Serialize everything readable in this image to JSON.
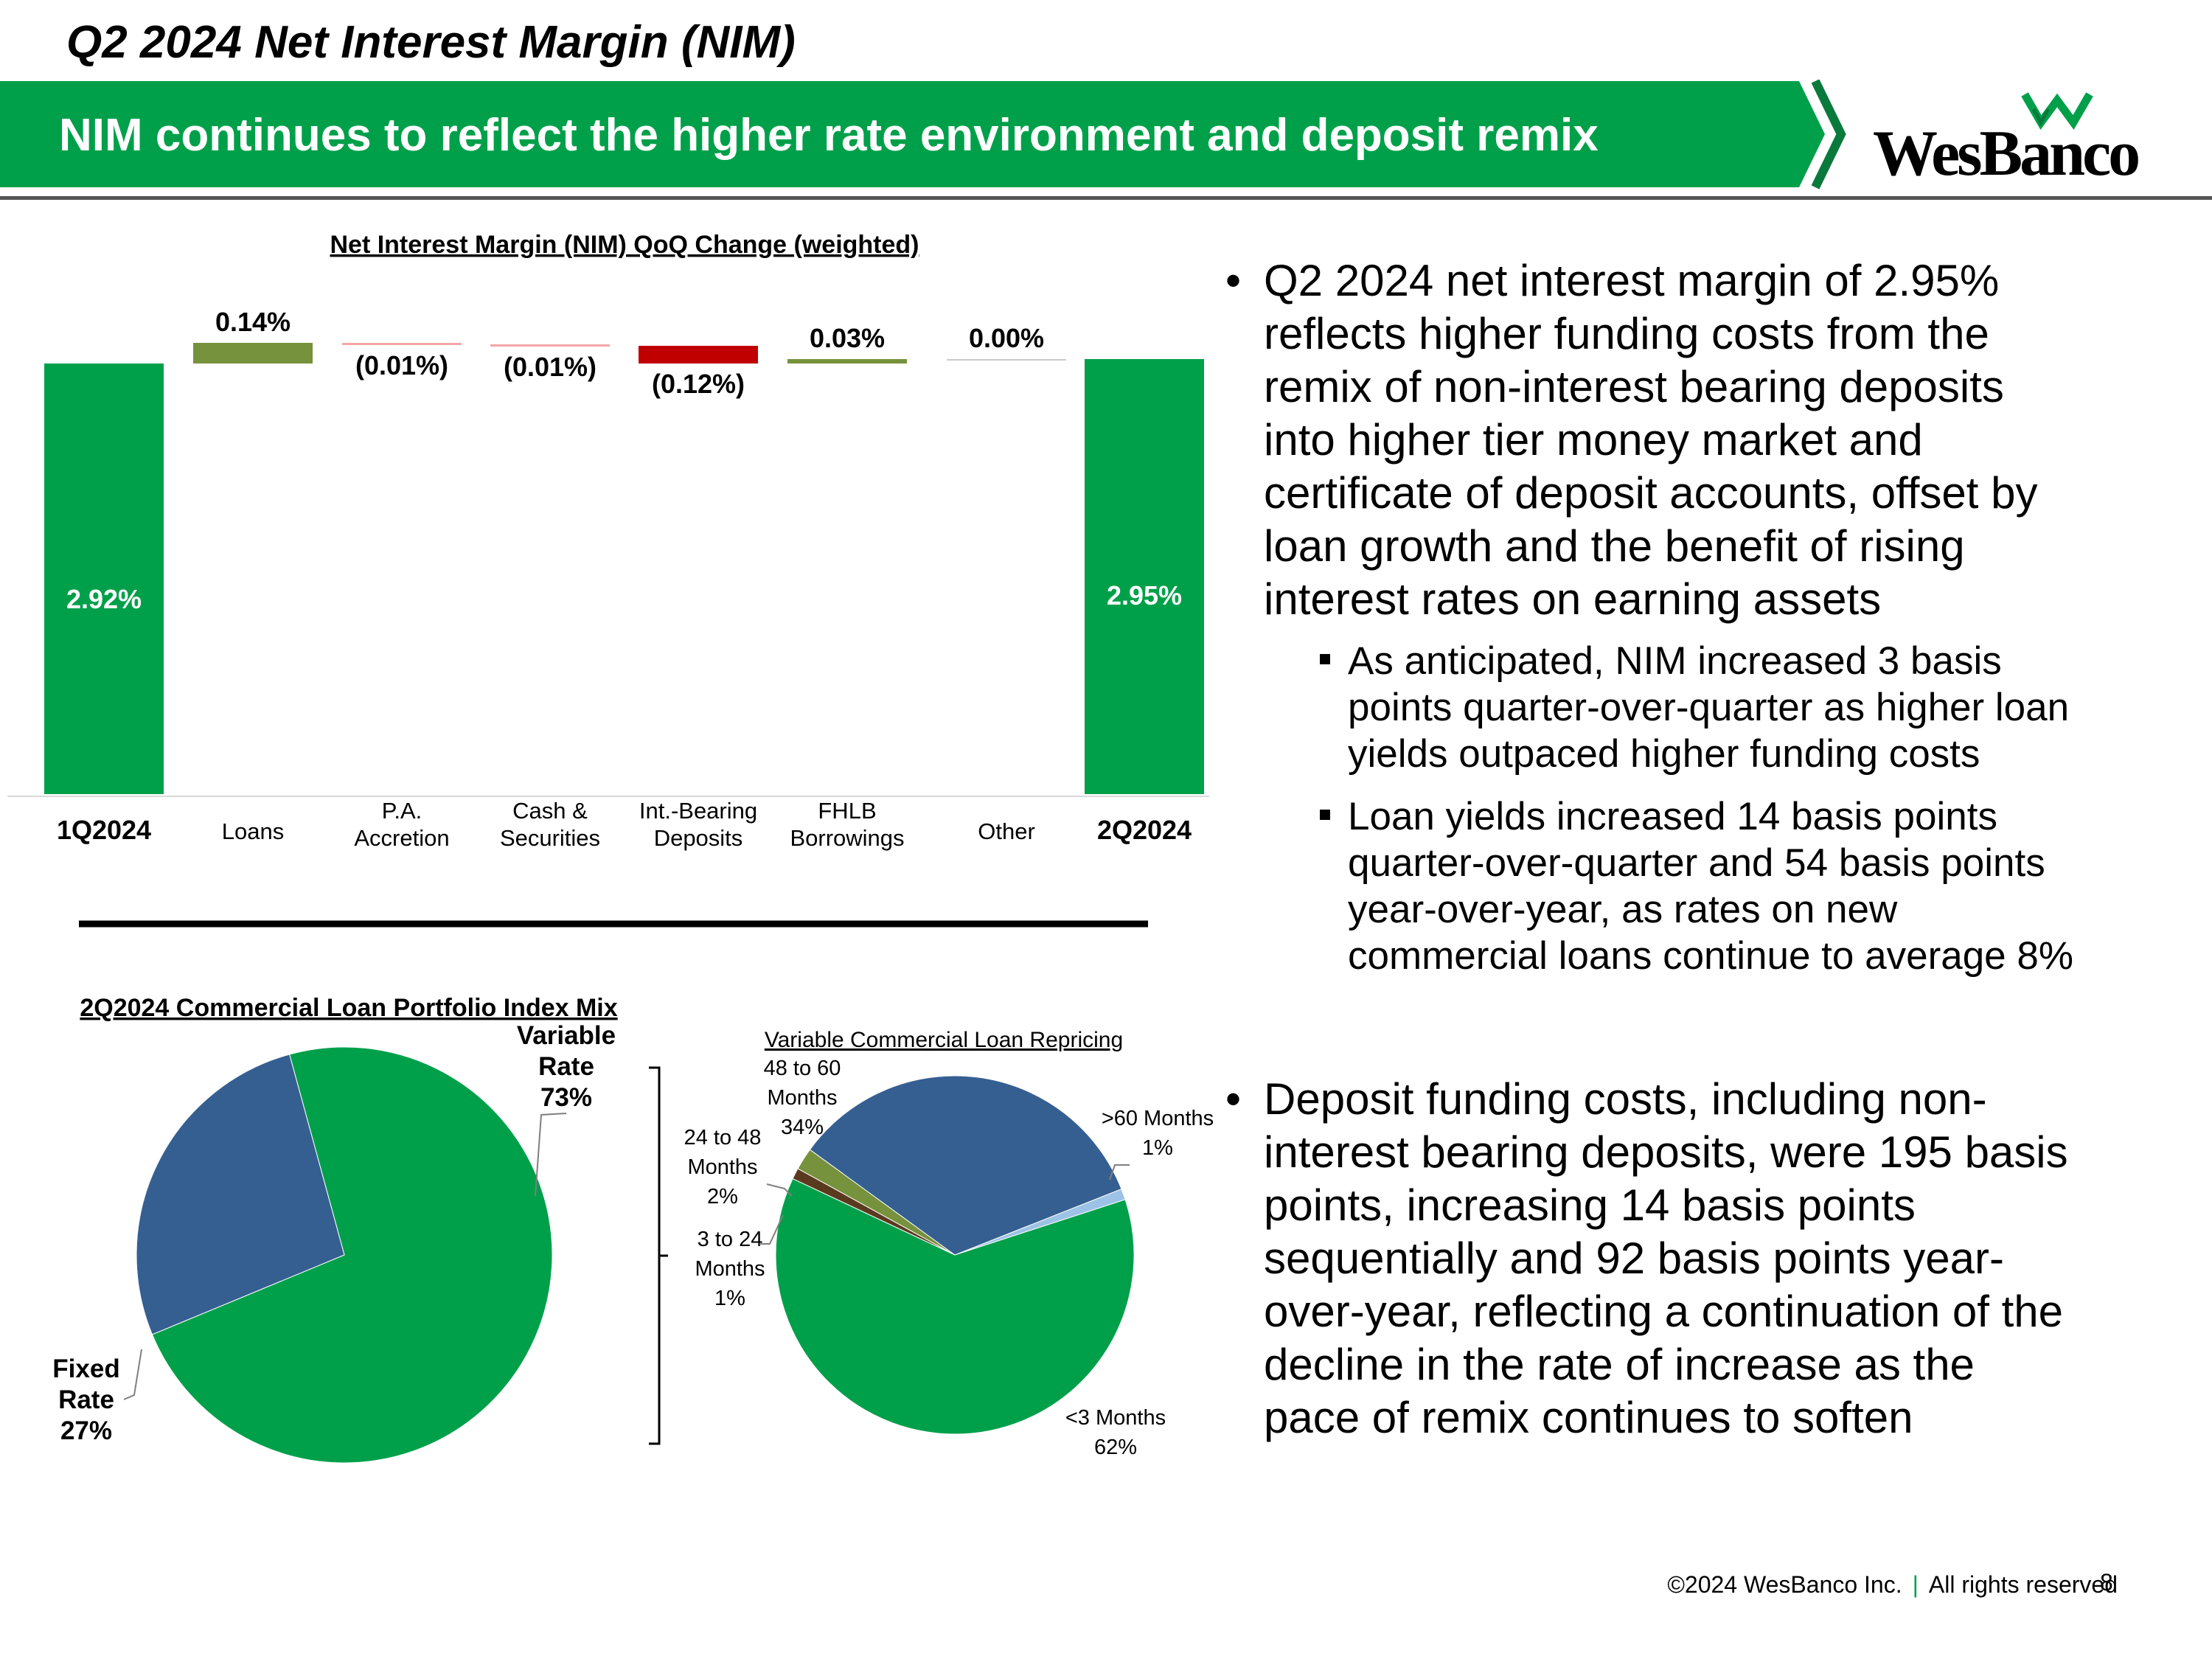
{
  "title": "Q2 2024 Net Interest Margin (NIM)",
  "subtitle": "NIM continues to reflect the higher rate environment and deposit remix",
  "logo": {
    "text": "WesBanco",
    "icon": "wesbanco-w-logo-icon"
  },
  "colors": {
    "green": "#00a04a",
    "dark_green": "#0a7a3c",
    "blue": "#355f91",
    "olive": "#76923c",
    "red": "#c00000",
    "light_blue": "#9cc2e5",
    "pink_line": "#f4a6a6"
  },
  "chart_data": [
    {
      "type": "bar",
      "subtype": "waterfall",
      "title": "Net Interest Margin (NIM) QoQ Change (weighted)",
      "categories": [
        "1Q2024",
        "Loans",
        "P.A. Accretion",
        "Cash & Securities",
        "Int.-Bearing Deposits",
        "FHLB Borrowings",
        "Other",
        "2Q2024"
      ],
      "category_lines": [
        [
          "1Q2024"
        ],
        [
          "Loans"
        ],
        [
          "P.A.",
          "Accretion"
        ],
        [
          "Cash &",
          "Securities"
        ],
        [
          "Int.-Bearing",
          "Deposits"
        ],
        [
          "FHLB",
          "Borrowings"
        ],
        [
          "Other"
        ],
        [
          "2Q2024"
        ]
      ],
      "values": [
        2.92,
        0.14,
        -0.01,
        -0.01,
        -0.12,
        0.03,
        0.0,
        2.95
      ],
      "labels": [
        "2.92%",
        "0.14%",
        "(0.01%)",
        "(0.01%)",
        "(0.12%)",
        "0.03%",
        "0.00%",
        "2.95%"
      ],
      "total_indices": [
        0,
        7
      ],
      "ylim": [
        0,
        3.2
      ]
    },
    {
      "type": "pie",
      "title": "2Q2024 Commercial Loan Portfolio Index Mix",
      "slices": [
        {
          "name": "Variable Rate",
          "lines": [
            "Variable",
            "Rate",
            "73%"
          ],
          "value": 73,
          "color": "#00a04a"
        },
        {
          "name": "Fixed Rate",
          "lines": [
            "Fixed",
            "Rate",
            "27%"
          ],
          "value": 27,
          "color": "#355f91"
        }
      ]
    },
    {
      "type": "pie",
      "title": "Variable Commercial Loan Repricing",
      "slices": [
        {
          "name": ">60 Months",
          "lines": [
            ">60 Months",
            "1%"
          ],
          "value": 1,
          "color": "#9cc2e5"
        },
        {
          "name": "<3 Months",
          "lines": [
            "<3 Months",
            "62%"
          ],
          "value": 62,
          "color": "#00a04a"
        },
        {
          "name": "3 to 24 Months",
          "lines": [
            "3 to 24",
            "Months",
            "1%"
          ],
          "value": 1,
          "color": "#5a3a1e"
        },
        {
          "name": "24 to 48 Months",
          "lines": [
            "24 to 48",
            "Months",
            "2%"
          ],
          "value": 2,
          "color": "#76923c"
        },
        {
          "name": "48 to 60 Months",
          "lines": [
            "48 to 60",
            "Months",
            "34%"
          ],
          "value": 34,
          "color": "#355f91"
        }
      ]
    }
  ],
  "bullets": [
    {
      "text": "Q2 2024 net interest margin of 2.95% reflects higher funding costs from the remix of non-interest bearing deposits into higher tier money market and certificate of deposit accounts, offset by loan growth and the benefit of rising interest rates on earning assets",
      "lines": [
        "Q2 2024 net interest margin of 2.95%",
        "reflects higher funding costs from the",
        "remix of non-interest bearing deposits",
        "into higher tier money market and",
        "certificate of deposit accounts, offset by",
        "loan growth and the benefit of rising",
        "interest rates on earning assets"
      ],
      "sub": [
        {
          "text": "As anticipated, NIM increased 3 basis points quarter-over-quarter as higher loan yields outpaced higher funding costs",
          "lines": [
            "As anticipated, NIM increased 3 basis",
            "points quarter-over-quarter as higher loan",
            "yields outpaced higher funding costs"
          ]
        },
        {
          "text": "Loan yields increased 14 basis points quarter-over-quarter and 54 basis points year-over-year, as rates on new commercial loans continue to average 8%",
          "lines": [
            "Loan yields increased 14 basis points",
            "quarter-over-quarter and 54 basis points",
            "year-over-year, as rates on new",
            "commercial loans continue to average 8%"
          ]
        }
      ]
    },
    {
      "text": "Deposit funding costs, including non-interest bearing deposits, were 195 basis points, increasing 14 basis points sequentially and 92 basis points year-over-year, reflecting a continuation of the decline in the rate of increase as the pace of remix continues to soften",
      "lines": [
        "Deposit funding costs, including non-",
        "interest bearing deposits, were 195 basis",
        "points, increasing 14 basis points",
        "sequentially and 92 basis points year-",
        "over-year, reflecting a continuation of the",
        "decline in the rate of increase as the",
        "pace of remix continues to soften"
      ],
      "sub": []
    }
  ],
  "footer": {
    "copyright": "©2024 WesBanco Inc.",
    "separator": "|",
    "rights": "All rights reserved",
    "page": "8"
  }
}
